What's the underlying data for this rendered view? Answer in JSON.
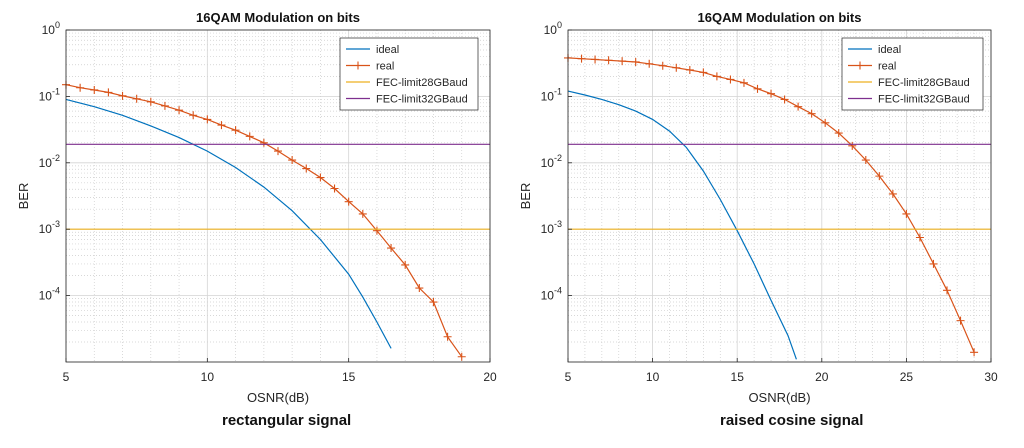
{
  "chart_data": [
    {
      "type": "line",
      "title": "16QAM Modulation on bits",
      "xlabel": "OSNR(dB)",
      "ylabel": "BER",
      "xlim": [
        5,
        20
      ],
      "ylim": [
        1e-05,
        1
      ],
      "yscale": "log",
      "xticks": [
        "5",
        "10",
        "15",
        "20"
      ],
      "grid": "major-and-minor",
      "legend_position": "top-right",
      "series": [
        {
          "name": "ideal",
          "color": "#0072BD",
          "marker": "none",
          "x": [
            5,
            6,
            7,
            8,
            9,
            10,
            11,
            12,
            13,
            14,
            15,
            15.5,
            16,
            16.5
          ],
          "y": [
            0.09,
            0.07,
            0.052,
            0.036,
            0.024,
            0.015,
            0.0085,
            0.0043,
            0.0019,
            0.0007,
            0.00021,
            9.5e-05,
            4e-05,
            1.6e-05
          ]
        },
        {
          "name": "real",
          "color": "#D95319",
          "marker": "+",
          "x": [
            5,
            5.5,
            6,
            6.5,
            7,
            7.5,
            8,
            8.5,
            9,
            9.5,
            10,
            10.5,
            11,
            11.5,
            12,
            12.5,
            13,
            13.5,
            14,
            14.5,
            15,
            15.5,
            16,
            16.5,
            17,
            17.5,
            18,
            18.5,
            19
          ],
          "y": [
            0.15,
            0.135,
            0.125,
            0.115,
            0.102,
            0.092,
            0.083,
            0.072,
            0.062,
            0.052,
            0.045,
            0.037,
            0.031,
            0.025,
            0.02,
            0.015,
            0.011,
            0.0082,
            0.006,
            0.0041,
            0.0026,
            0.0017,
            0.00095,
            0.00052,
            0.00029,
            0.00013,
            8e-05,
            2.4e-05,
            1.2e-05
          ]
        },
        {
          "name": "FEC-limit28GBaud",
          "color": "#EDB120",
          "marker": "none",
          "x": [
            5,
            20
          ],
          "y": [
            0.001,
            0.001
          ]
        },
        {
          "name": "FEC-limit32GBaud",
          "color": "#7E2F8E",
          "marker": "none",
          "x": [
            5,
            20
          ],
          "y": [
            0.019,
            0.019
          ]
        }
      ]
    },
    {
      "type": "line",
      "title": "16QAM Modulation on bits",
      "xlabel": "OSNR(dB)",
      "ylabel": "BER",
      "xlim": [
        5,
        30
      ],
      "ylim": [
        1e-05,
        1
      ],
      "yscale": "log",
      "xticks": [
        "5",
        "10",
        "15",
        "20",
        "25",
        "30"
      ],
      "grid": "major-and-minor",
      "legend_position": "top-right",
      "series": [
        {
          "name": "ideal",
          "color": "#0072BD",
          "marker": "none",
          "x": [
            5,
            6,
            7,
            8,
            9,
            10,
            11,
            12,
            13,
            14,
            15,
            16,
            17,
            18,
            18.5
          ],
          "y": [
            0.12,
            0.105,
            0.09,
            0.075,
            0.06,
            0.045,
            0.03,
            0.017,
            0.0075,
            0.0028,
            0.00095,
            0.0003,
            8.5e-05,
            2.5e-05,
            1.1e-05
          ]
        },
        {
          "name": "real",
          "color": "#D95319",
          "marker": "+",
          "x": [
            5,
            5.8,
            6.6,
            7.4,
            8.2,
            9,
            9.8,
            10.6,
            11.4,
            12.2,
            13,
            13.8,
            14.6,
            15.4,
            16.2,
            17,
            17.8,
            18.6,
            19.4,
            20.2,
            21,
            21.8,
            22.6,
            23.4,
            24.2,
            25,
            25.8,
            26.6,
            27.4,
            28.2,
            29
          ],
          "y": [
            0.38,
            0.37,
            0.36,
            0.35,
            0.34,
            0.33,
            0.31,
            0.29,
            0.27,
            0.25,
            0.23,
            0.2,
            0.18,
            0.16,
            0.13,
            0.11,
            0.09,
            0.07,
            0.055,
            0.04,
            0.028,
            0.018,
            0.011,
            0.0063,
            0.0034,
            0.0017,
            0.00075,
            0.0003,
            0.00012,
            4.2e-05,
            1.4e-05
          ]
        },
        {
          "name": "FEC-limit28GBaud",
          "color": "#EDB120",
          "marker": "none",
          "x": [
            5,
            30
          ],
          "y": [
            0.001,
            0.001
          ]
        },
        {
          "name": "FEC-limit32GBaud",
          "color": "#7E2F8E",
          "marker": "none",
          "x": [
            5,
            30
          ],
          "y": [
            0.019,
            0.019
          ]
        }
      ]
    }
  ],
  "captions": [
    "rectangular signal",
    "raised cosine signal"
  ]
}
